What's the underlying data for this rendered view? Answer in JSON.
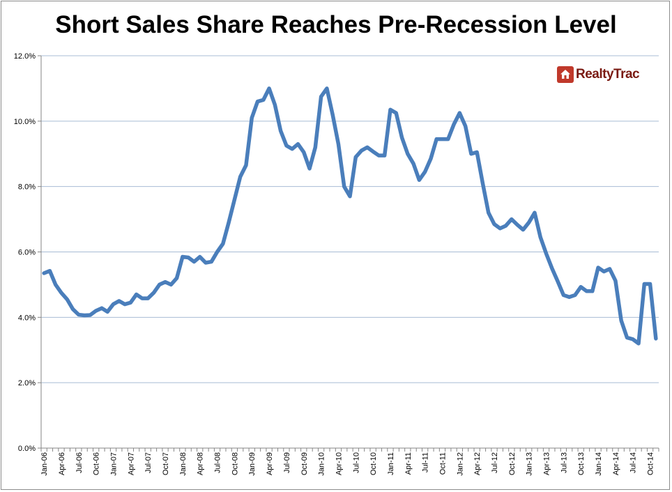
{
  "title": "Short Sales Share Reaches Pre-Recession Level",
  "logo": {
    "text": "RealtyTrac",
    "color": "#c0392b"
  },
  "colors": {
    "line": "#4a7ebb",
    "grid": "#a8bcd4",
    "axis": "#868686"
  },
  "chart_data": {
    "type": "line",
    "title": "Short Sales Share Reaches Pre-Recession Level",
    "xlabel": "",
    "ylabel": "",
    "ylim": [
      0,
      12
    ],
    "yticks": [
      "0.0%",
      "2.0%",
      "4.0%",
      "6.0%",
      "8.0%",
      "10.0%",
      "12.0%"
    ],
    "grid": true,
    "xtick_labels": [
      "Jan-06",
      "Apr-06",
      "Jul-06",
      "Oct-06",
      "Jan-07",
      "Apr-07",
      "Jul-07",
      "Oct-07",
      "Jan-08",
      "Apr-08",
      "Jul-08",
      "Oct-08",
      "Jan-09",
      "Apr-09",
      "Jul-09",
      "Oct-09",
      "Jan-10",
      "Apr-10",
      "Jul-10",
      "Oct-10",
      "Jan-11",
      "Apr-11",
      "Jul-11",
      "Oct-11",
      "Jan-12",
      "Apr-12",
      "Jul-12",
      "Oct-12",
      "Jan-13",
      "Apr-13",
      "Jul-13",
      "Oct-13",
      "Jan-14",
      "Apr-14",
      "Jul-14",
      "Oct-14"
    ],
    "series": [
      {
        "values": [
          5.35,
          5.42,
          5.0,
          4.75,
          4.55,
          4.25,
          4.08,
          4.06,
          4.07,
          4.2,
          4.28,
          4.17,
          4.4,
          4.5,
          4.4,
          4.45,
          4.7,
          4.58,
          4.58,
          4.75,
          5.0,
          5.08,
          5.0,
          5.2,
          5.85,
          5.83,
          5.7,
          5.85,
          5.67,
          5.7,
          6.0,
          6.25,
          6.9,
          7.6,
          8.3,
          8.65,
          10.1,
          10.6,
          10.65,
          11.0,
          10.5,
          9.7,
          9.25,
          9.15,
          9.3,
          9.05,
          8.55,
          9.2,
          10.75,
          11.0,
          10.2,
          9.3,
          8.0,
          7.7,
          8.9,
          9.1,
          9.2,
          9.07,
          8.95,
          8.95,
          10.35,
          10.25,
          9.5,
          9.0,
          8.7,
          8.2,
          8.45,
          8.85,
          9.45,
          9.45,
          9.45,
          9.9,
          10.25,
          9.85,
          9.0,
          9.05,
          8.1,
          7.2,
          6.85,
          6.72,
          6.8,
          7.0,
          6.83,
          6.68,
          6.9,
          7.2,
          6.45,
          5.95,
          5.5,
          5.1,
          4.68,
          4.62,
          4.68,
          4.93,
          4.8,
          4.8,
          5.52,
          5.4,
          5.48,
          5.12,
          3.9,
          3.38,
          3.33,
          3.2,
          5.02,
          5.02,
          3.35
        ]
      }
    ]
  }
}
